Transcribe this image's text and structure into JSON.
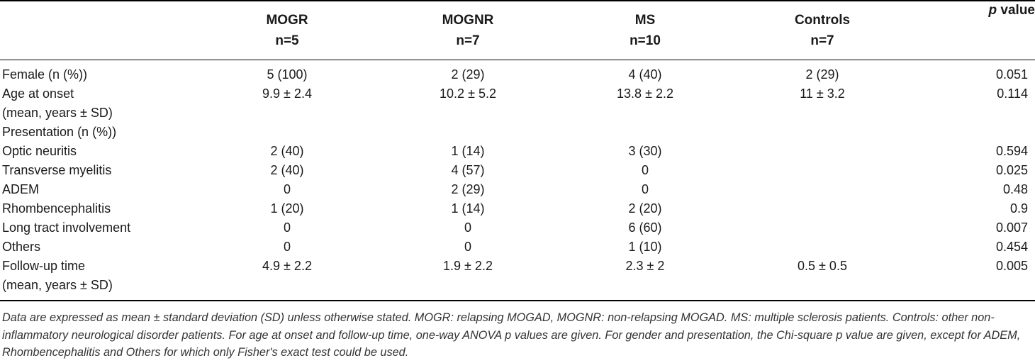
{
  "table": {
    "headers": {
      "mogr": {
        "name": "MOGR",
        "n": "n=5"
      },
      "mognr": {
        "name": "MOGNR",
        "n": "n=7"
      },
      "ms": {
        "name": "MS",
        "n": "n=10"
      },
      "controls": {
        "name": "Controls",
        "n": "n=7"
      },
      "pvalue": {
        "p": "p",
        "label": "value"
      }
    },
    "rows": [
      {
        "label": "Female (n (%))",
        "label2": "",
        "mogr": "5 (100)",
        "mognr": "2 (29)",
        "ms": "4 (40)",
        "controls": "2 (29)",
        "p": "0.051"
      },
      {
        "label": "Age at onset",
        "label2": "(mean, years ± SD)",
        "mogr": "9.9 ± 2.4",
        "mognr": "10.2 ± 5.2",
        "ms": "13.8 ± 2.2",
        "controls": "11 ± 3.2",
        "p": "0.114"
      },
      {
        "label": "Presentation (n (%))",
        "label2": "",
        "mogr": "",
        "mognr": "",
        "ms": "",
        "controls": "",
        "p": ""
      },
      {
        "label": "Optic neuritis",
        "label2": "",
        "mogr": "2 (40)",
        "mognr": "1 (14)",
        "ms": "3 (30)",
        "controls": "",
        "p": "0.594"
      },
      {
        "label": "Transverse myelitis",
        "label2": "",
        "mogr": "2 (40)",
        "mognr": "4 (57)",
        "ms": "0",
        "controls": "",
        "p": "0.025"
      },
      {
        "label": "ADEM",
        "label2": "",
        "mogr": "0",
        "mognr": "2 (29)",
        "ms": "0",
        "controls": "",
        "p": "0.48"
      },
      {
        "label": "Rhombencephalitis",
        "label2": "",
        "mogr": "1 (20)",
        "mognr": "1 (14)",
        "ms": "2 (20)",
        "controls": "",
        "p": "0.9"
      },
      {
        "label": "Long tract involvement",
        "label2": "",
        "mogr": "0",
        "mognr": "0",
        "ms": "6 (60)",
        "controls": "",
        "p": "0.007"
      },
      {
        "label": "Others",
        "label2": "",
        "mogr": "0",
        "mognr": "0",
        "ms": "1 (10)",
        "controls": "",
        "p": "0.454"
      },
      {
        "label": "Follow-up time",
        "label2": "(mean, years ± SD)",
        "mogr": "4.9 ± 2.2",
        "mognr": "1.9 ± 2.2",
        "ms": "2.3 ± 2",
        "controls": "0.5 ± 0.5",
        "p": "0.005"
      }
    ]
  },
  "footnote": "Data are expressed as mean ± standard deviation (SD) unless otherwise stated. MOGR: relapsing MOGAD, MOGNR: non-relapsing MOGAD. MS: multiple sclerosis patients. Controls: other non-inflammatory neurological disorder patients. For age at onset and follow-up time, one-way ANOVA p values are given. For gender and presentation, the Chi-square p value are given, except for ADEM, Rhombencephalitis and Others for which only Fisher's exact test could be used."
}
